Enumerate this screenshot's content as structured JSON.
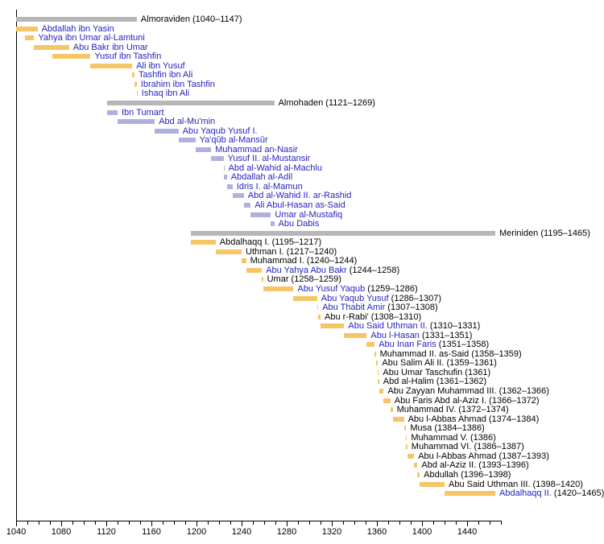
{
  "colors": {
    "background": "#ffffff",
    "dynasty_bar": "#b7b7b7",
    "almoraviden_bar": "#f5c566",
    "almohaden_bar": "#b0b0e0",
    "meriniden_bar": "#f5c566",
    "link_text": "#2424c0",
    "plain_text": "#000000",
    "axis": "#000000"
  },
  "chart_data": {
    "type": "bar",
    "variant": "gantt-timeline",
    "title": "",
    "xlabel": "",
    "ylabel": "",
    "grid": false,
    "legend": false,
    "axis": {
      "min": 1040,
      "max": 1470,
      "tick_interval": 10,
      "major_interval": 40,
      "tick_labels": [
        "1040",
        "1080",
        "1120",
        "1160",
        "1200",
        "1240",
        "1280",
        "1320",
        "1360",
        "1400",
        "1440"
      ]
    },
    "rows": [
      {
        "name": "Almoraviden",
        "dates": "(1040–1147)",
        "start": 1040,
        "end": 1147,
        "group": "dynasty",
        "link": false
      },
      {
        "name": "Abdallah ibn Yasin",
        "dates": "",
        "start": 1040,
        "end": 1059,
        "group": "almoraviden",
        "link": true
      },
      {
        "name": "Yahya ibn Umar al-Lamtuni",
        "dates": "",
        "start": 1048,
        "end": 1056,
        "group": "almoraviden",
        "link": true
      },
      {
        "name": "Abu Bakr ibn Umar",
        "dates": "",
        "start": 1056,
        "end": 1087,
        "group": "almoraviden",
        "link": true
      },
      {
        "name": "Yusuf ibn Tashfin",
        "dates": "",
        "start": 1072,
        "end": 1106,
        "group": "almoraviden",
        "link": true
      },
      {
        "name": "Ali ibn Yusuf",
        "dates": "",
        "start": 1106,
        "end": 1143,
        "group": "almoraviden",
        "link": true
      },
      {
        "name": "Tashfin ibn Ali",
        "dates": "",
        "start": 1143,
        "end": 1145,
        "group": "almoraviden",
        "link": true
      },
      {
        "name": "Ibrahim ibn Tashfin",
        "dates": "",
        "start": 1145,
        "end": 1147,
        "group": "almoraviden",
        "link": true
      },
      {
        "name": "Ishaq ibn Ali",
        "dates": "",
        "start": 1147,
        "end": 1147.5,
        "group": "almoraviden",
        "link": true
      },
      {
        "name": "Almohaden",
        "dates": "(1121–1269)",
        "start": 1121,
        "end": 1269,
        "group": "dynasty",
        "link": false
      },
      {
        "name": "Ibn Tumart",
        "dates": "",
        "start": 1121,
        "end": 1130,
        "group": "almohaden",
        "link": true
      },
      {
        "name": "Abd al-Mu'min",
        "dates": "",
        "start": 1130,
        "end": 1163,
        "group": "almohaden",
        "link": true
      },
      {
        "name": "Abu Yaqub Yusuf I.",
        "dates": "",
        "start": 1163,
        "end": 1184,
        "group": "almohaden",
        "link": true
      },
      {
        "name": "Ya'qûb al-Mansûr",
        "dates": "",
        "start": 1184,
        "end": 1199,
        "group": "almohaden",
        "link": true
      },
      {
        "name": "Muhammad an-Nasir",
        "dates": "",
        "start": 1199,
        "end": 1213,
        "group": "almohaden",
        "link": true
      },
      {
        "name": "Yusuf II. al-Mustansir",
        "dates": "",
        "start": 1213,
        "end": 1224,
        "group": "almohaden",
        "link": true
      },
      {
        "name": "Abd al-Wahid al-Machlu",
        "dates": "",
        "start": 1224,
        "end": 1224.5,
        "group": "almohaden",
        "link": true
      },
      {
        "name": "Abdallah al-Adil",
        "dates": "",
        "start": 1224,
        "end": 1227,
        "group": "almohaden",
        "link": true
      },
      {
        "name": "Idris I. al-Mamun",
        "dates": "",
        "start": 1227,
        "end": 1232,
        "group": "almohaden",
        "link": true
      },
      {
        "name": "Abd al-Wahid II. ar-Rashid",
        "dates": "",
        "start": 1232,
        "end": 1242,
        "group": "almohaden",
        "link": true
      },
      {
        "name": "Ali Abul-Hasan as-Said",
        "dates": "",
        "start": 1242,
        "end": 1248,
        "group": "almohaden",
        "link": true
      },
      {
        "name": "Umar al-Mustafiq",
        "dates": "",
        "start": 1248,
        "end": 1266,
        "group": "almohaden",
        "link": true
      },
      {
        "name": "Abu Dabis",
        "dates": "",
        "start": 1266,
        "end": 1269,
        "group": "almohaden",
        "link": true
      },
      {
        "name": "Meriniden",
        "dates": "(1195–1465)",
        "start": 1195,
        "end": 1465,
        "group": "dynasty",
        "link": false
      },
      {
        "name": "Abdalhaqq I.",
        "dates": "(1195–1217)",
        "start": 1195,
        "end": 1217,
        "group": "meriniden",
        "link": false
      },
      {
        "name": "Uthman I.",
        "dates": "(1217–1240)",
        "start": 1217,
        "end": 1240,
        "group": "meriniden",
        "link": false
      },
      {
        "name": "Muhammad I.",
        "dates": "(1240–1244)",
        "start": 1240,
        "end": 1244,
        "group": "meriniden",
        "link": false
      },
      {
        "name": "Abu Yahya Abu Bakr",
        "dates": "(1244–1258)",
        "start": 1244,
        "end": 1258,
        "group": "meriniden",
        "link": true
      },
      {
        "name": "Umar",
        "dates": "(1258–1259)",
        "start": 1258,
        "end": 1259,
        "group": "meriniden",
        "link": false
      },
      {
        "name": "Abu Yusuf Yaqub",
        "dates": "(1259–1286)",
        "start": 1259,
        "end": 1286,
        "group": "meriniden",
        "link": true
      },
      {
        "name": "Abu Yaqub Yusuf",
        "dates": "(1286–1307)",
        "start": 1286,
        "end": 1307,
        "group": "meriniden",
        "link": true
      },
      {
        "name": "Abu Thabit Amir",
        "dates": "(1307–1308)",
        "start": 1307,
        "end": 1308,
        "group": "meriniden",
        "link": true
      },
      {
        "name": "Abu r-Rabi'",
        "dates": "(1308–1310)",
        "start": 1308,
        "end": 1310,
        "group": "meriniden",
        "link": false
      },
      {
        "name": "Abu Said Uthman II.",
        "dates": "(1310–1331)",
        "start": 1310,
        "end": 1331,
        "group": "meriniden",
        "link": true
      },
      {
        "name": "Abu l-Hasan",
        "dates": "(1331–1351)",
        "start": 1331,
        "end": 1351,
        "group": "meriniden",
        "link": true
      },
      {
        "name": "Abu Inan Faris",
        "dates": "(1351–1358)",
        "start": 1351,
        "end": 1358,
        "group": "meriniden",
        "link": true
      },
      {
        "name": "Muhammad II. as-Said",
        "dates": "(1358–1359)",
        "start": 1358,
        "end": 1359,
        "group": "meriniden",
        "link": false
      },
      {
        "name": "Abu Salim Ali II.",
        "dates": "(1359–1361)",
        "start": 1359,
        "end": 1361,
        "group": "meriniden",
        "link": false
      },
      {
        "name": "Abu Umar Taschufin",
        "dates": "(1361)",
        "start": 1361,
        "end": 1361.5,
        "group": "meriniden",
        "link": false
      },
      {
        "name": "Abd al-Halim",
        "dates": "(1361–1362)",
        "start": 1361,
        "end": 1362,
        "group": "meriniden",
        "link": false
      },
      {
        "name": "Abu Zayyan Muhammad III.",
        "dates": "(1362–1366)",
        "start": 1362,
        "end": 1366,
        "group": "meriniden",
        "link": false
      },
      {
        "name": "Abu Faris Abd al-Aziz I.",
        "dates": "(1366–1372)",
        "start": 1366,
        "end": 1372,
        "group": "meriniden",
        "link": false
      },
      {
        "name": "Muhammad IV.",
        "dates": "(1372–1374)",
        "start": 1372,
        "end": 1374,
        "group": "meriniden",
        "link": false
      },
      {
        "name": "Abu l-Abbas Ahmad",
        "dates": "(1374–1384)",
        "start": 1374,
        "end": 1384,
        "group": "meriniden",
        "link": false
      },
      {
        "name": "Musa",
        "dates": "(1384–1386)",
        "start": 1384,
        "end": 1386,
        "group": "meriniden",
        "link": false
      },
      {
        "name": "Muhammad V.",
        "dates": "(1386)",
        "start": 1386,
        "end": 1386.5,
        "group": "meriniden",
        "link": false
      },
      {
        "name": "Muhammad VI.",
        "dates": "(1386–1387)",
        "start": 1386,
        "end": 1387,
        "group": "meriniden",
        "link": false
      },
      {
        "name": "Abu l-Abbas Ahmad",
        "dates": "(1387–1393)",
        "start": 1387,
        "end": 1393,
        "group": "meriniden",
        "link": false
      },
      {
        "name": "Abd al-Aziz II.",
        "dates": "(1393–1396)",
        "start": 1393,
        "end": 1396,
        "group": "meriniden",
        "link": false
      },
      {
        "name": "Abdullah",
        "dates": "(1396–1398)",
        "start": 1396,
        "end": 1398,
        "group": "meriniden",
        "link": false
      },
      {
        "name": "Abu Said Uthman III.",
        "dates": "(1398–1420)",
        "start": 1398,
        "end": 1420,
        "group": "meriniden",
        "link": false
      },
      {
        "name": "Abdalhaqq II.",
        "dates": "(1420–1465)",
        "start": 1420,
        "end": 1465,
        "group": "meriniden",
        "link": true
      }
    ]
  }
}
